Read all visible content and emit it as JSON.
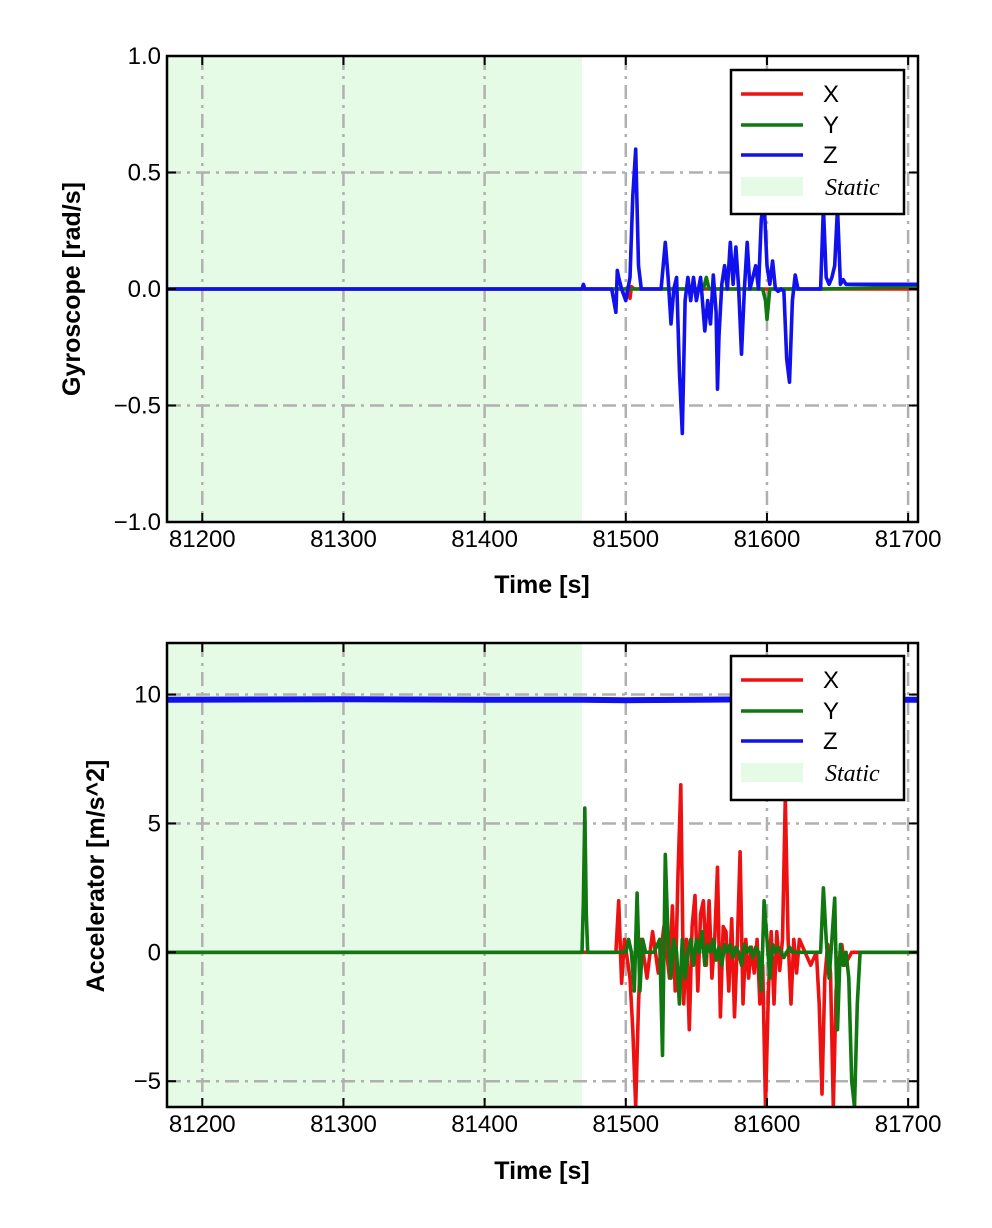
{
  "colors": {
    "x": "#ee1111",
    "y": "#117711",
    "z": "#1111ee",
    "static_fill": "#e6fbe6",
    "grid": "#b0b0b0"
  },
  "chart_data": [
    {
      "type": "line",
      "xlabel": "Time [s]",
      "ylabel": "Gyroscope [rad/s]",
      "xlim": [
        81175,
        81707
      ],
      "ylim": [
        -1.0,
        1.0
      ],
      "xticks": [
        81200,
        81300,
        81400,
        81500,
        81600,
        81700
      ],
      "xtick_labels": [
        "81200",
        "81300",
        "81400",
        "81500",
        "81600",
        "81700"
      ],
      "yticks": [
        -1.0,
        -0.5,
        0.0,
        0.5,
        1.0
      ],
      "ytick_labels": [
        "−1.0",
        "−0.5",
        "0.0",
        "0.5",
        "1.0"
      ],
      "grid": true,
      "legend_position": "top-right",
      "legend": [
        "X",
        "Y",
        "Z",
        "Static"
      ],
      "static_region": [
        81175,
        81469
      ],
      "series": [
        {
          "name": "X",
          "x": [
            81175,
            81469,
            81500,
            81502,
            81503,
            81504,
            81506,
            81550,
            81707
          ],
          "y": [
            0,
            0,
            0,
            0.01,
            -0.04,
            0.01,
            0,
            0,
            0
          ]
        },
        {
          "name": "Y",
          "x": [
            81175,
            81469,
            81555,
            81557,
            81559,
            81597,
            81599,
            81600,
            81602,
            81640,
            81707
          ],
          "y": [
            0,
            0,
            0,
            0.05,
            0,
            0,
            -0.05,
            -0.13,
            0,
            0,
            0.01
          ]
        },
        {
          "name": "Z",
          "x": [
            81175,
            81469,
            81470,
            81471,
            81472,
            81490,
            81493,
            81494,
            81495,
            81497,
            81500,
            81503,
            81505,
            81507,
            81509,
            81511,
            81525,
            81528,
            81530,
            81532,
            81534,
            81536,
            81538,
            81540,
            81542,
            81544,
            81546,
            81548,
            81550,
            81553,
            81556,
            81558,
            81560,
            81562,
            81564,
            81565,
            81566,
            81568,
            81570,
            81572,
            81574,
            81576,
            81578,
            81580,
            81582,
            81584,
            81586,
            81588,
            81590,
            81592,
            81594,
            81596,
            81598,
            81600,
            81602,
            81604,
            81606,
            81608,
            81610,
            81612,
            81614,
            81616,
            81618,
            81620,
            81622,
            81624,
            81626,
            81628,
            81630,
            81632,
            81634,
            81636,
            81638,
            81640,
            81642,
            81644,
            81646,
            81648,
            81650,
            81652,
            81654,
            81656,
            81660,
            81707
          ],
          "y": [
            0,
            0,
            0.02,
            0,
            0,
            0,
            -0.1,
            0.08,
            0.05,
            0,
            -0.05,
            0.05,
            0.4,
            0.6,
            0.1,
            0,
            0,
            0.2,
            0.05,
            -0.15,
            0,
            0.05,
            -0.35,
            -0.62,
            -0.05,
            0.05,
            -0.05,
            0.05,
            -0.05,
            0.05,
            -0.18,
            -0.05,
            -0.15,
            0.06,
            -0.1,
            -0.43,
            -0.2,
            0.02,
            0.1,
            0,
            0.2,
            0.02,
            0.18,
            0,
            -0.28,
            0,
            0.2,
            0,
            0.05,
            0.1,
            0,
            0.3,
            0.38,
            0.1,
            0.02,
            0.12,
            0,
            -0.01,
            0,
            -0.01,
            -0.3,
            -0.4,
            -0.05,
            0.06,
            0,
            0,
            0,
            0,
            0,
            0,
            0,
            0,
            0,
            0.35,
            0.05,
            0.02,
            0.05,
            0.1,
            0.35,
            0.02,
            0.04,
            0.02,
            0.02,
            0.02
          ]
        }
      ]
    },
    {
      "type": "line",
      "xlabel": "Time [s]",
      "ylabel": "Accelerator [m/s^2]",
      "xlim": [
        81175,
        81707
      ],
      "ylim": [
        -6.0,
        12.0
      ],
      "xticks": [
        81200,
        81300,
        81400,
        81500,
        81600,
        81700
      ],
      "xtick_labels": [
        "81200",
        "81300",
        "81400",
        "81500",
        "81600",
        "81700"
      ],
      "yticks": [
        -5,
        0,
        5,
        10
      ],
      "ytick_labels": [
        "−5",
        "0",
        "5",
        "10"
      ],
      "grid": true,
      "legend_position": "top-right",
      "legend": [
        "X",
        "Y",
        "Z",
        "Static"
      ],
      "static_region": [
        81175,
        81469
      ],
      "series": [
        {
          "name": "X",
          "x": [
            81175,
            81469,
            81493,
            81495,
            81497,
            81499,
            81503,
            81505,
            81507,
            81509,
            81511,
            81515,
            81519,
            81523,
            81527,
            81531,
            81533,
            81535,
            81537,
            81539,
            81541,
            81543,
            81545,
            81547,
            81549,
            81551,
            81553,
            81555,
            81557,
            81559,
            81561,
            81563,
            81565,
            81567,
            81569,
            81571,
            81573,
            81575,
            81577,
            81579,
            81581,
            81583,
            81585,
            81587,
            81589,
            81591,
            81593,
            81595,
            81597,
            81599,
            81601,
            81603,
            81605,
            81607,
            81609,
            81611,
            81613,
            81615,
            81617,
            81619,
            81621,
            81623,
            81627,
            81631,
            81635,
            81637,
            81639,
            81641,
            81643,
            81645,
            81647,
            81649,
            81651,
            81653,
            81655,
            81660,
            81707
          ],
          "y": [
            0,
            0,
            0,
            2,
            -1.2,
            0.5,
            -1,
            -3,
            -6,
            -2,
            0.5,
            -1,
            0.8,
            -0.8,
            1,
            -1,
            1.8,
            -1.5,
            3,
            6.5,
            -2,
            0.5,
            -3,
            1,
            2.2,
            -1.5,
            1.5,
            2,
            -0.5,
            2,
            -1,
            0.5,
            3.3,
            -2.5,
            1,
            0.8,
            -1.5,
            1.3,
            -2.5,
            0.3,
            3.9,
            -2,
            0.5,
            -1,
            0.2,
            -0.8,
            0.5,
            -2,
            -0.5,
            -6,
            -1.5,
            0.8,
            -2,
            0.8,
            -0.7,
            0.5,
            6,
            0.5,
            -2,
            0.5,
            -0.8,
            0.5,
            0,
            -0.5,
            0,
            -2,
            -5.5,
            -1,
            0.3,
            -0.8,
            -6,
            -1.5,
            -0.3,
            0.3,
            -0.5,
            0,
            0
          ]
        },
        {
          "name": "Y",
          "x": [
            81175,
            81469,
            81470,
            81471,
            81472,
            81473,
            81475,
            81500,
            81502,
            81504,
            81506,
            81508,
            81510,
            81512,
            81514,
            81520,
            81524,
            81526,
            81528,
            81530,
            81532,
            81534,
            81536,
            81538,
            81540,
            81542,
            81544,
            81546,
            81548,
            81550,
            81552,
            81554,
            81556,
            81558,
            81560,
            81562,
            81564,
            81566,
            81568,
            81570,
            81572,
            81574,
            81576,
            81578,
            81580,
            81582,
            81584,
            81586,
            81588,
            81590,
            81592,
            81594,
            81596,
            81598,
            81600,
            81602,
            81604,
            81606,
            81608,
            81610,
            81612,
            81614,
            81616,
            81618,
            81620,
            81622,
            81624,
            81626,
            81628,
            81630,
            81632,
            81634,
            81636,
            81638,
            81640,
            81642,
            81644,
            81646,
            81648,
            81650,
            81652,
            81654,
            81656,
            81658,
            81660,
            81662,
            81664,
            81666,
            81707
          ],
          "y": [
            0,
            0,
            2,
            5.6,
            1.5,
            0,
            0,
            0,
            0.5,
            0,
            -1.5,
            2.3,
            -1.5,
            0.5,
            0,
            0,
            0.5,
            -4,
            3.8,
            0.5,
            -1,
            0.5,
            0,
            -2,
            0.5,
            -1,
            0,
            0.5,
            -0.5,
            0.5,
            0,
            0.8,
            -0.5,
            0.3,
            0,
            0.5,
            -0.3,
            0.2,
            -0.5,
            0.3,
            0,
            0.3,
            -0.2,
            0.2,
            0,
            -0.5,
            0.3,
            0,
            0.2,
            -0.2,
            0.2,
            0,
            -1.5,
            2,
            0.5,
            -1,
            0.3,
            0,
            0.2,
            0,
            -0.2,
            0,
            0.2,
            0,
            0,
            0,
            0,
            0,
            0,
            0,
            0,
            0,
            0,
            0,
            2.5,
            0.5,
            -1,
            0.5,
            2.1,
            -3,
            0.3,
            -0.5,
            0,
            -1,
            -5,
            -6,
            -2,
            0,
            0
          ]
        },
        {
          "name": "Z",
          "x": [
            81175,
            81300,
            81400,
            81469,
            81500,
            81550,
            81600,
            81650,
            81707
          ],
          "y": [
            9.8,
            9.82,
            9.8,
            9.8,
            9.78,
            9.8,
            9.82,
            9.8,
            9.8
          ]
        }
      ]
    }
  ]
}
